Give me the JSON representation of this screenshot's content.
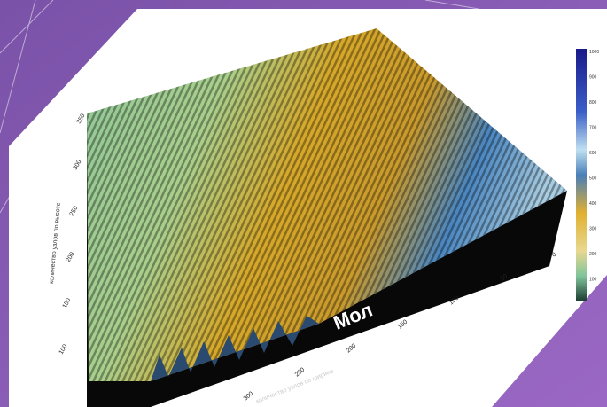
{
  "slide": {
    "plot": {
      "label": "Мол",
      "x_axis_title": "количество узлов по ширине",
      "y_axis_title": "количество узлов по высоте",
      "x_ticks": [
        "0",
        "50",
        "100",
        "150",
        "200",
        "250",
        "300"
      ],
      "y_ticks": [
        "100",
        "150",
        "200",
        "250",
        "300",
        "350"
      ],
      "colorbar_ticks": [
        "1000",
        "900",
        "800",
        "700",
        "600",
        "500",
        "400",
        "300",
        "200",
        "100"
      ]
    }
  }
}
